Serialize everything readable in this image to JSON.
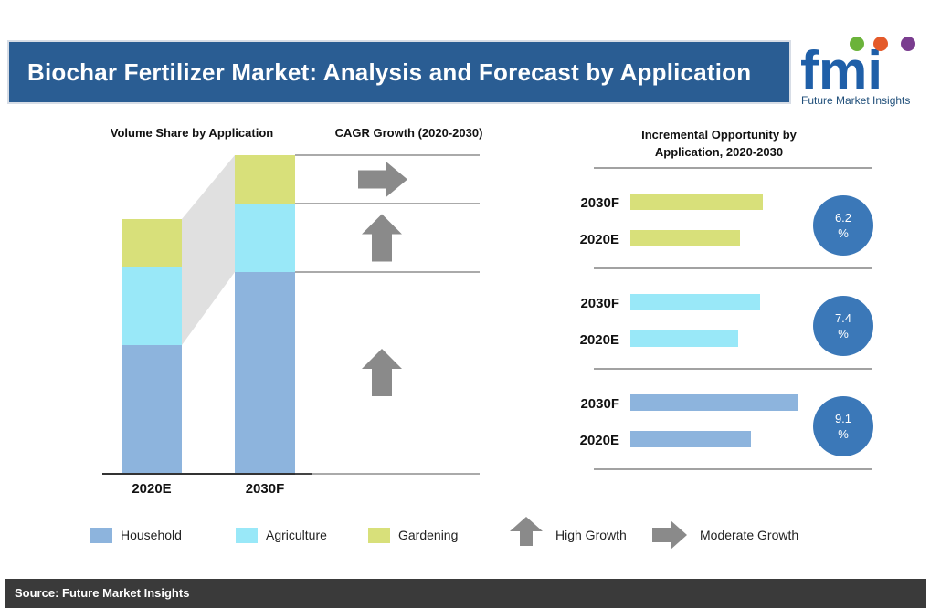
{
  "title": "Biochar Fertilizer Market: Analysis and Forecast by Application",
  "logo": {
    "brand": "fmi",
    "subtitle": "Future Market Insights"
  },
  "headers": {
    "volume_share": "Volume Share by Application",
    "cagr": "CAGR Growth (2020-2030)",
    "incremental": "Incremental Opportunity by Application, 2020-2030"
  },
  "colors": {
    "household": "#8db4dd",
    "agriculture": "#99e8f8",
    "gardening": "#d8e07a",
    "arrow": "#8a8a8a",
    "circle": "#3b78b8",
    "banner": "#2a5d93"
  },
  "chart_data": [
    {
      "type": "bar",
      "title": "Volume Share by Application",
      "stacked": true,
      "categories": [
        "2020E",
        "2030F"
      ],
      "series": [
        {
          "name": "Household",
          "values": [
            140,
            220
          ]
        },
        {
          "name": "Agriculture",
          "values": [
            86,
            75
          ]
        },
        {
          "name": "Gardening",
          "values": [
            52,
            53
          ]
        }
      ],
      "cagr_indicators": [
        {
          "segment": "Gardening",
          "growth": "Moderate Growth"
        },
        {
          "segment": "Agriculture",
          "growth": "High Growth"
        },
        {
          "segment": "Household",
          "growth": "High Growth"
        }
      ]
    },
    {
      "type": "bar",
      "orientation": "horizontal",
      "title": "Incremental Opportunity by Application, 2020-2030",
      "groups": [
        {
          "segment": "Gardening",
          "categories": [
            "2030F",
            "2020E"
          ],
          "values": [
            145,
            120
          ],
          "cagr_label": "6.2",
          "cagr_unit": "%"
        },
        {
          "segment": "Agriculture",
          "categories": [
            "2030F",
            "2020E"
          ],
          "values": [
            142,
            118
          ],
          "cagr_label": "7.4",
          "cagr_unit": "%"
        },
        {
          "segment": "Household",
          "categories": [
            "2030F",
            "2020E"
          ],
          "values": [
            184,
            132
          ],
          "cagr_label": "9.1",
          "cagr_unit": "%"
        }
      ]
    }
  ],
  "legend": [
    {
      "key": "household",
      "label": "Household"
    },
    {
      "key": "agriculture",
      "label": "Agriculture"
    },
    {
      "key": "gardening",
      "label": "Gardening"
    }
  ],
  "arrow_legend": {
    "high": "High Growth",
    "moderate": "Moderate Growth"
  },
  "source": "Source: Future Market Insights"
}
